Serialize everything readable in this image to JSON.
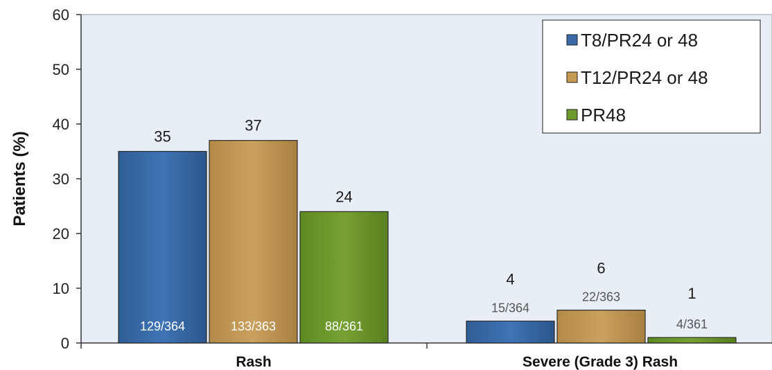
{
  "chart_data": {
    "type": "bar",
    "ylabel": "Patients (%)",
    "ylim": [
      0,
      60
    ],
    "yticks": [
      "0",
      "10",
      "20",
      "30",
      "40",
      "50",
      "60"
    ],
    "categories": [
      "Rash",
      "Severe (Grade 3) Rash"
    ],
    "series": [
      {
        "name": "T8/PR24 or 48",
        "color": "#3a6ba8",
        "values": [
          35,
          4
        ],
        "value_labels": [
          "35",
          "4"
        ],
        "fractions": [
          "129/364",
          "15/364"
        ]
      },
      {
        "name": "T12/PR24 or 48",
        "color": "#c49a55",
        "values": [
          37,
          6
        ],
        "value_labels": [
          "37",
          "6"
        ],
        "fractions": [
          "133/363",
          "22/363"
        ]
      },
      {
        "name": "PR48",
        "color": "#6f9a2c",
        "values": [
          24,
          1
        ],
        "value_labels": [
          "24",
          "1"
        ],
        "fractions": [
          "88/361",
          "4/361"
        ]
      }
    ],
    "legend_position": "top-right",
    "plot_background": "#e8eef6",
    "grid": false
  }
}
